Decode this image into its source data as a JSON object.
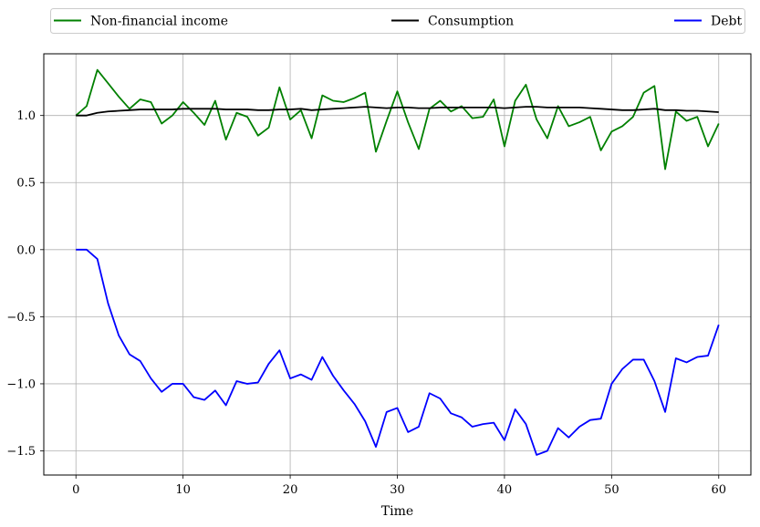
{
  "chart_data": {
    "type": "line",
    "title": "",
    "xlabel": "Time",
    "ylabel": "",
    "xlim": [
      -3,
      63
    ],
    "ylim": [
      -1.68,
      1.46
    ],
    "xticks": [
      0,
      10,
      20,
      30,
      40,
      50,
      60
    ],
    "xtick_labels": [
      "0",
      "10",
      "20",
      "30",
      "40",
      "50",
      "60"
    ],
    "yticks": [
      -1.5,
      -1.0,
      -0.5,
      0.0,
      0.5,
      1.0
    ],
    "ytick_labels": [
      "−1.5",
      "−1.0",
      "−0.5",
      "0.0",
      "0.5",
      "1.0"
    ],
    "grid": true,
    "legend_position": "top, above plot, spread across width",
    "x": [
      0,
      1,
      2,
      3,
      4,
      5,
      6,
      7,
      8,
      9,
      10,
      11,
      12,
      13,
      14,
      15,
      16,
      17,
      18,
      19,
      20,
      21,
      22,
      23,
      24,
      25,
      26,
      27,
      28,
      29,
      30,
      31,
      32,
      33,
      34,
      35,
      36,
      37,
      38,
      39,
      40,
      41,
      42,
      43,
      44,
      45,
      46,
      47,
      48,
      49,
      50,
      51,
      52,
      53,
      54,
      55,
      56,
      57,
      58,
      59,
      60
    ],
    "series": [
      {
        "name": "Non-financial income",
        "color": "#008000",
        "values": [
          1.0,
          1.07,
          1.34,
          1.24,
          1.14,
          1.05,
          1.12,
          1.1,
          0.94,
          1.0,
          1.1,
          1.02,
          0.93,
          1.11,
          0.82,
          1.02,
          0.99,
          0.85,
          0.91,
          1.21,
          0.97,
          1.04,
          0.83,
          1.15,
          1.11,
          1.1,
          1.13,
          1.17,
          0.73,
          0.96,
          1.18,
          0.95,
          0.75,
          1.05,
          1.11,
          1.03,
          1.07,
          0.98,
          0.99,
          1.12,
          0.77,
          1.11,
          1.23,
          0.97,
          0.83,
          1.07,
          0.92,
          0.95,
          0.99,
          0.74,
          0.88,
          0.92,
          0.99,
          1.17,
          1.22,
          0.6,
          1.03,
          0.96,
          0.99,
          0.77,
          0.94
        ]
      },
      {
        "name": "Consumption",
        "color": "#000000",
        "values": [
          1.0,
          1.0,
          1.02,
          1.03,
          1.035,
          1.04,
          1.045,
          1.045,
          1.045,
          1.045,
          1.05,
          1.05,
          1.05,
          1.05,
          1.045,
          1.045,
          1.045,
          1.04,
          1.04,
          1.045,
          1.045,
          1.05,
          1.04,
          1.045,
          1.05,
          1.055,
          1.06,
          1.065,
          1.06,
          1.055,
          1.06,
          1.06,
          1.055,
          1.055,
          1.06,
          1.06,
          1.06,
          1.06,
          1.06,
          1.06,
          1.055,
          1.06,
          1.065,
          1.065,
          1.06,
          1.06,
          1.06,
          1.06,
          1.055,
          1.05,
          1.045,
          1.04,
          1.04,
          1.045,
          1.05,
          1.04,
          1.04,
          1.035,
          1.035,
          1.03,
          1.025
        ]
      },
      {
        "name": "Debt",
        "color": "#0000ff",
        "values": [
          0.0,
          0.0,
          -0.07,
          -0.4,
          -0.64,
          -0.78,
          -0.83,
          -0.96,
          -1.06,
          -1.0,
          -1.0,
          -1.1,
          -1.12,
          -1.05,
          -1.16,
          -0.98,
          -1.0,
          -0.99,
          -0.85,
          -0.75,
          -0.96,
          -0.93,
          -0.97,
          -0.8,
          -0.94,
          -1.05,
          -1.15,
          -1.28,
          -1.47,
          -1.21,
          -1.18,
          -1.36,
          -1.32,
          -1.07,
          -1.11,
          -1.22,
          -1.25,
          -1.32,
          -1.3,
          -1.29,
          -1.42,
          -1.19,
          -1.3,
          -1.53,
          -1.5,
          -1.33,
          -1.4,
          -1.32,
          -1.27,
          -1.26,
          -1.0,
          -0.89,
          -0.82,
          -0.82,
          -0.98,
          -1.21,
          -0.81,
          -0.84,
          -0.8,
          -0.79,
          -0.56
        ]
      }
    ]
  }
}
